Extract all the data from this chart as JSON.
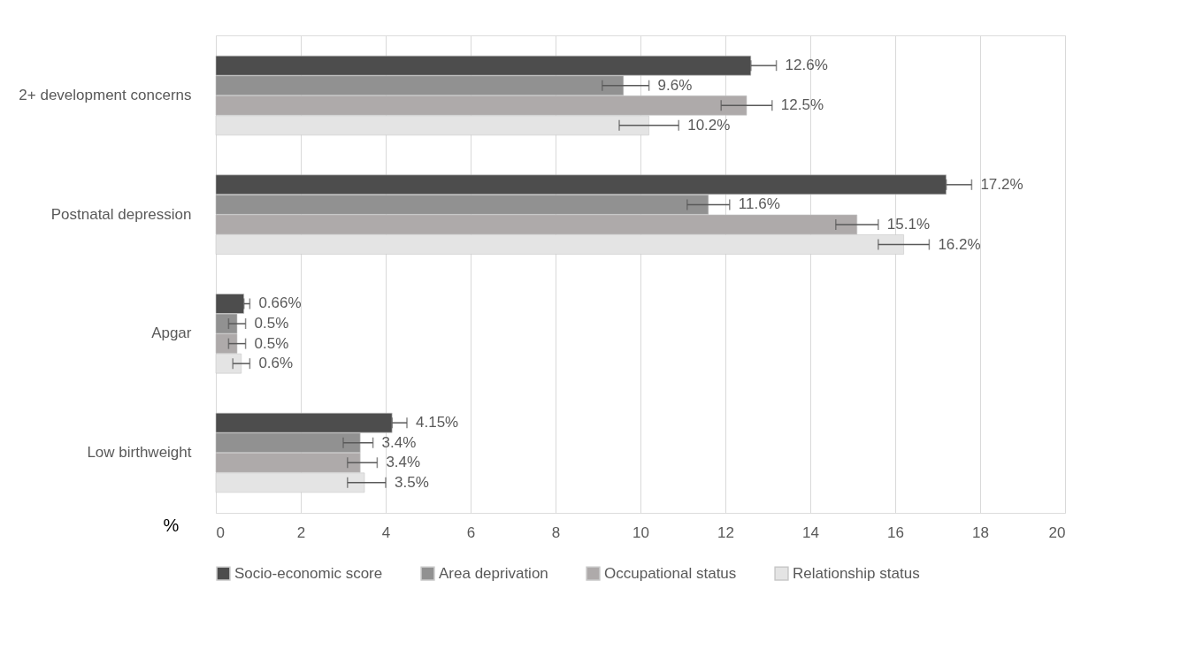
{
  "chart_data": {
    "type": "bar",
    "orientation": "horizontal",
    "xlabel": "%",
    "categories": [
      "2+ development concerns",
      "Postnatal depression",
      "Apgar",
      "Low birthweight"
    ],
    "series": [
      {
        "name": "Socio-economic score",
        "color": "#4d4d4d",
        "values": [
          12.6,
          17.2,
          0.66,
          4.15
        ],
        "errors": [
          [
            12.6,
            13.2
          ],
          [
            17.2,
            17.8
          ],
          [
            0.66,
            0.8
          ],
          [
            4.15,
            4.5
          ]
        ],
        "value_labels": [
          "12.6%",
          "17.2%",
          "0.66%",
          "4.15%"
        ]
      },
      {
        "name": "Area deprivation",
        "color": "#919191",
        "values": [
          9.6,
          11.6,
          0.5,
          3.4
        ],
        "errors": [
          [
            9.1,
            10.2
          ],
          [
            11.1,
            12.1
          ],
          [
            0.3,
            0.7
          ],
          [
            3.0,
            3.7
          ]
        ],
        "value_labels": [
          "9.6%",
          "11.6%",
          "0.5%",
          "3.4%"
        ]
      },
      {
        "name": "Occupational status",
        "color": "#aeaaaa",
        "values": [
          12.5,
          15.1,
          0.5,
          3.4
        ],
        "errors": [
          [
            11.9,
            13.1
          ],
          [
            14.6,
            15.6
          ],
          [
            0.3,
            0.7
          ],
          [
            3.1,
            3.8
          ]
        ],
        "value_labels": [
          "12.5%",
          "15.1%",
          "0.5%",
          "3.4%"
        ]
      },
      {
        "name": "Relationship status",
        "color": "#e4e4e4",
        "values": [
          10.2,
          16.2,
          0.6,
          3.5
        ],
        "errors": [
          [
            9.5,
            10.9
          ],
          [
            15.6,
            16.8
          ],
          [
            0.4,
            0.8
          ],
          [
            3.1,
            4.0
          ]
        ],
        "value_labels": [
          "10.2%",
          "16.2%",
          "0.6%",
          "3.5%"
        ]
      }
    ],
    "xlim": [
      0,
      20
    ],
    "xticks": [
      0,
      2,
      4,
      6,
      8,
      10,
      12,
      14,
      16,
      18,
      20
    ],
    "grid": "x",
    "legend": "bottom"
  }
}
